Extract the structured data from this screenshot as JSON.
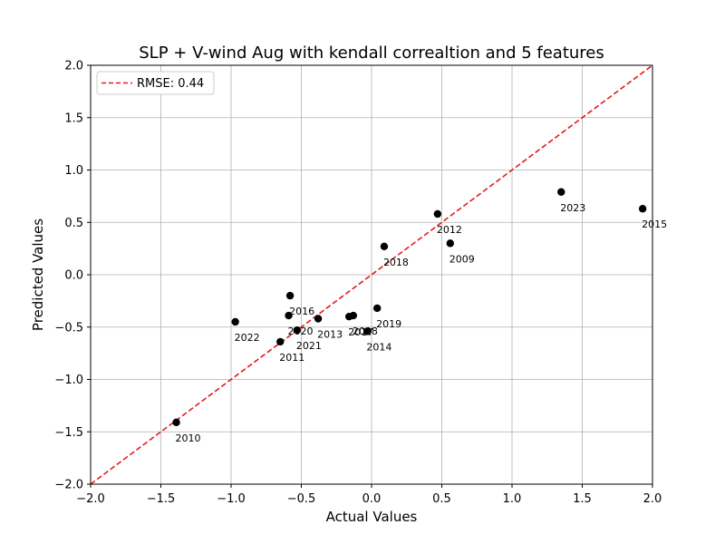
{
  "chart_data": {
    "type": "scatter",
    "title": "SLP + V-wind Aug with kendall correaltion and 5 features",
    "xlabel": "Actual Values",
    "ylabel": "Predicted Values",
    "xlim": [
      -2.0,
      2.0
    ],
    "ylim": [
      -2.0,
      2.0
    ],
    "xticks": [
      "−2.0",
      "−1.5",
      "−1.0",
      "−0.5",
      "0.0",
      "0.5",
      "1.0",
      "1.5",
      "2.0"
    ],
    "yticks": [
      "−2.0",
      "−1.5",
      "−1.0",
      "−0.5",
      "0.0",
      "0.5",
      "1.0",
      "1.5",
      "2.0"
    ],
    "grid": true,
    "legend": {
      "placement": "top-left",
      "entries": [
        "RMSE: 0.44"
      ]
    },
    "reference_line": {
      "style": "dashed",
      "color": "#e31a1c",
      "from": [
        -2.0,
        -2.0
      ],
      "to": [
        2.0,
        2.0
      ]
    },
    "point_color": "#000000",
    "points": [
      {
        "label": "2009",
        "x": 0.56,
        "y": 0.3
      },
      {
        "label": "2010",
        "x": -1.39,
        "y": -1.41
      },
      {
        "label": "2011",
        "x": -0.65,
        "y": -0.64
      },
      {
        "label": "2012",
        "x": 0.47,
        "y": 0.58
      },
      {
        "label": "2013",
        "x": -0.38,
        "y": -0.42
      },
      {
        "label": "2014",
        "x": -0.03,
        "y": -0.54
      },
      {
        "label": "2015",
        "x": 1.93,
        "y": 0.63
      },
      {
        "label": "2016",
        "x": -0.58,
        "y": -0.2
      },
      {
        "label": "2017",
        "x": -0.16,
        "y": -0.4
      },
      {
        "label": "2018",
        "x": 0.09,
        "y": 0.27
      },
      {
        "label": "2019",
        "x": 0.04,
        "y": -0.32
      },
      {
        "label": "2020",
        "x": -0.59,
        "y": -0.39
      },
      {
        "label": "2021",
        "x": -0.53,
        "y": -0.53
      },
      {
        "label": "2022",
        "x": -0.97,
        "y": -0.45
      },
      {
        "label": "2023",
        "x": 1.35,
        "y": 0.79
      },
      {
        "label": "2008",
        "x": -0.13,
        "y": -0.39
      }
    ]
  }
}
